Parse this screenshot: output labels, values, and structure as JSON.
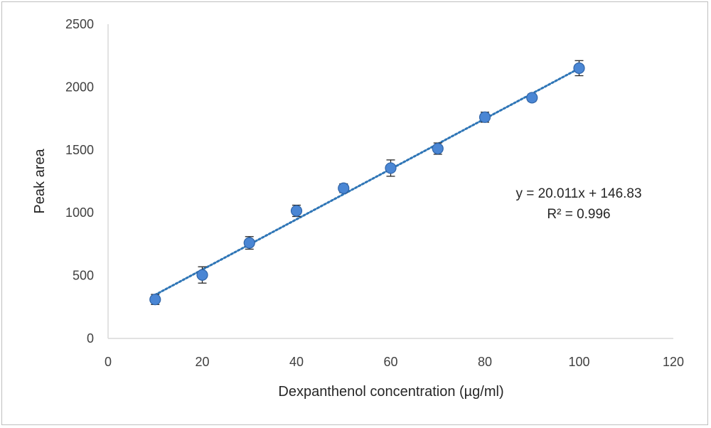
{
  "chart_data": {
    "type": "scatter",
    "title": "",
    "xlabel": "Dexpanthenol concentration (µg/ml)",
    "ylabel": "Peak area",
    "xlim": [
      0,
      120
    ],
    "ylim": [
      0,
      2500
    ],
    "xticks": [
      0,
      20,
      40,
      60,
      80,
      100,
      120
    ],
    "yticks": [
      0,
      500,
      1000,
      1500,
      2000,
      2500
    ],
    "grid": false,
    "legend": "none",
    "series": [
      {
        "x": [
          10,
          20,
          30,
          40,
          50,
          60,
          70,
          80,
          90,
          100
        ],
        "y": [
          310,
          505,
          760,
          1015,
          1195,
          1355,
          1510,
          1760,
          1915,
          2150
        ],
        "error": [
          40,
          65,
          50,
          45,
          35,
          65,
          45,
          40,
          30,
          60
        ],
        "color": "#4a86d4"
      }
    ],
    "trendline": {
      "type": "linear",
      "slope": 20.011,
      "intercept": 146.83,
      "x_range": [
        10,
        100
      ],
      "style": "dotted",
      "color": "#2e75b6"
    },
    "annotations": {
      "equation": "y = 20.011x + 146.83",
      "r_squared": "R² = 0.996"
    }
  }
}
